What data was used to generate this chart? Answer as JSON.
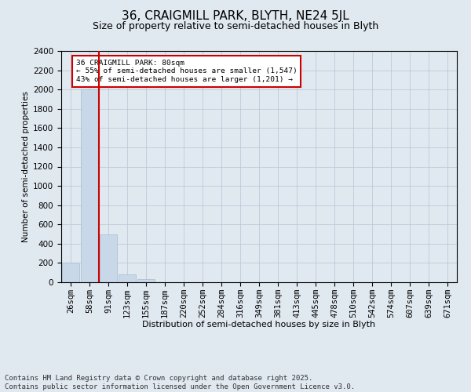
{
  "title_line1": "36, CRAIGMILL PARK, BLYTH, NE24 5JL",
  "title_line2": "Size of property relative to semi-detached houses in Blyth",
  "xlabel": "Distribution of semi-detached houses by size in Blyth",
  "ylabel": "Number of semi-detached properties",
  "categories": [
    "26sqm",
    "58sqm",
    "91sqm",
    "123sqm",
    "155sqm",
    "187sqm",
    "220sqm",
    "252sqm",
    "284sqm",
    "316sqm",
    "349sqm",
    "381sqm",
    "413sqm",
    "445sqm",
    "478sqm",
    "510sqm",
    "542sqm",
    "574sqm",
    "607sqm",
    "639sqm",
    "671sqm"
  ],
  "values": [
    200,
    2000,
    500,
    80,
    30,
    0,
    0,
    0,
    0,
    0,
    0,
    0,
    0,
    0,
    0,
    0,
    0,
    0,
    0,
    0,
    0
  ],
  "bar_color": "#c8d8e8",
  "bar_edge_color": "#a8bcd0",
  "grid_color": "#b8c4d4",
  "background_color": "#e0e8f0",
  "red_line_x": 1.5,
  "annotation_text": "36 CRAIGMILL PARK: 80sqm\n← 55% of semi-detached houses are smaller (1,547)\n43% of semi-detached houses are larger (1,201) →",
  "annotation_box_color": "#ffffff",
  "annotation_border_color": "#cc0000",
  "subject_line_color": "#cc0000",
  "ylim": [
    0,
    2400
  ],
  "yticks": [
    0,
    200,
    400,
    600,
    800,
    1000,
    1200,
    1400,
    1600,
    1800,
    2000,
    2200,
    2400
  ],
  "footnote": "Contains HM Land Registry data © Crown copyright and database right 2025.\nContains public sector information licensed under the Open Government Licence v3.0.",
  "title_fontsize": 11,
  "subtitle_fontsize": 9,
  "footnote_fontsize": 6.5
}
